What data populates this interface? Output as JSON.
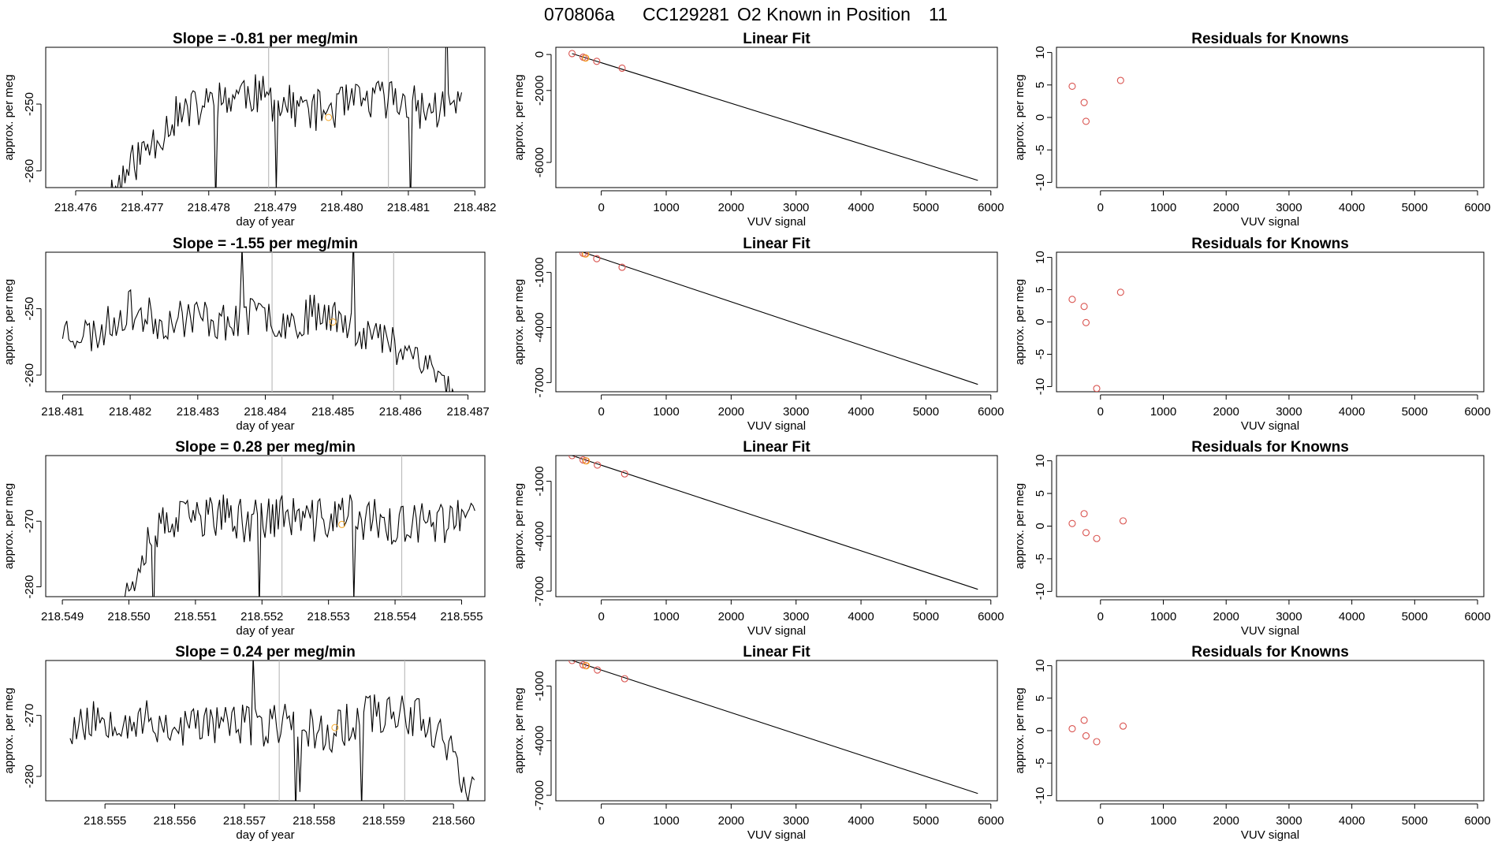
{
  "figure": {
    "title_parts": [
      "070806a",
      "CC129281",
      "O2 Known in Position",
      "11"
    ],
    "colors": {
      "line": "#000000",
      "vline": "#bdbdbd",
      "point": "#d9534f",
      "known": "#f5a623",
      "axis": "#000000"
    }
  },
  "chart_data": [
    {
      "type": "line",
      "panel": "time-series-row-1",
      "title": "Slope =  -0.81  per meg/min",
      "xlabel": "day of year",
      "ylabel": "approx. per meg",
      "xlim": [
        218.47555,
        218.48215
      ],
      "ylim": [
        -262.5,
        -241.5
      ],
      "xticks": [
        218.476,
        218.477,
        218.478,
        218.479,
        218.48,
        218.481,
        218.482
      ],
      "xtick_labels": [
        "218.476",
        "218.477",
        "218.478",
        "218.479",
        "218.480",
        "218.481",
        "218.482"
      ],
      "yticks": [
        -260,
        -250
      ],
      "ytick_labels": [
        "-260",
        "-250"
      ],
      "x_start": 218.4764,
      "x_end": 218.4818,
      "y_profile": [
        -265,
        -258,
        -252,
        -250,
        -248,
        -250,
        -251,
        -250,
        -249,
        -251,
        -250
      ],
      "vlines": [
        218.4789,
        218.4807
      ],
      "known_point": {
        "x": 218.4798,
        "y": -252
      },
      "noise_amplitude": 3.2,
      "seed": 11
    },
    {
      "type": "line",
      "panel": "time-series-row-2",
      "title": "Slope =  -1.55  per meg/min",
      "xlabel": "day of year",
      "ylabel": "approx. per meg",
      "xlim": [
        218.48075,
        218.48725
      ],
      "ylim": [
        -262.5,
        -241.5
      ],
      "xticks": [
        218.481,
        218.482,
        218.483,
        218.484,
        218.485,
        218.486,
        218.487
      ],
      "xtick_labels": [
        "218.481",
        "218.482",
        "218.483",
        "218.484",
        "218.485",
        "218.486",
        "218.487"
      ],
      "yticks": [
        -260,
        -250
      ],
      "ytick_labels": [
        "-260",
        "-250"
      ],
      "x_start": 218.481,
      "x_end": 218.4868,
      "y_profile": [
        -253,
        -254,
        -250,
        -252,
        -251,
        -252,
        -251,
        -252,
        -250,
        -253,
        -255,
        -257,
        -263
      ],
      "vlines": [
        218.4841,
        218.4859
      ],
      "known_point": {
        "x": 218.485,
        "y": -252
      },
      "noise_amplitude": 3.0,
      "seed": 23
    },
    {
      "type": "line",
      "panel": "time-series-row-3",
      "title": "Slope =  0.28  per meg/min",
      "xlabel": "day of year",
      "ylabel": "approx. per meg",
      "xlim": [
        218.54875,
        218.55535
      ],
      "ylim": [
        -281.5,
        -260.0
      ],
      "xticks": [
        218.549,
        218.55,
        218.551,
        218.552,
        218.553,
        218.554,
        218.555
      ],
      "xtick_labels": [
        "218.549",
        "218.550",
        "218.551",
        "218.552",
        "218.553",
        "218.554",
        "218.555"
      ],
      "yticks": [
        -280,
        -270
      ],
      "ytick_labels": [
        "-280",
        "-270"
      ],
      "x_start": 218.5498,
      "x_end": 218.5552,
      "y_profile": [
        -286,
        -272,
        -270,
        -269,
        -270,
        -269,
        -270,
        -269,
        -270,
        -271,
        -270,
        -270
      ],
      "vlines": [
        218.5523,
        218.5541
      ],
      "known_point": {
        "x": 218.5532,
        "y": -270.5
      },
      "noise_amplitude": 3.4,
      "seed": 37
    },
    {
      "type": "line",
      "panel": "time-series-row-4",
      "title": "Slope =  0.24  per meg/min",
      "xlabel": "day of year",
      "ylabel": "approx. per meg",
      "xlim": [
        218.55415,
        218.56045
      ],
      "ylim": [
        -284.0,
        -261.0
      ],
      "xticks": [
        218.555,
        218.556,
        218.557,
        218.558,
        218.559,
        218.56
      ],
      "xtick_labels": [
        "218.555",
        "218.556",
        "218.557",
        "218.558",
        "218.559",
        "218.560"
      ],
      "yticks": [
        -280,
        -270
      ],
      "ytick_labels": [
        "-280",
        "-270"
      ],
      "x_start": 218.5545,
      "x_end": 218.5603,
      "y_profile": [
        -272,
        -270,
        -271,
        -272,
        -271,
        -272,
        -271,
        -273,
        -270,
        -269,
        -272,
        -283
      ],
      "vlines": [
        218.5575,
        218.5593
      ],
      "known_point": {
        "x": 218.5583,
        "y": -272
      },
      "noise_amplitude": 3.6,
      "seed": 53
    },
    {
      "type": "scatter",
      "panel": "linear-fit-row-1",
      "title": "Linear Fit",
      "xlabel": "VUV signal",
      "ylabel": "approx. per meg",
      "xlim": [
        -700,
        6100
      ],
      "ylim": [
        -7400,
        400
      ],
      "xticks": [
        0,
        1000,
        2000,
        3000,
        4000,
        5000,
        6000
      ],
      "xtick_labels": [
        "0",
        "1000",
        "2000",
        "3000",
        "4000",
        "5000",
        "6000"
      ],
      "yticks": [
        -6000,
        -2000,
        0
      ],
      "ytick_labels": [
        "-6000",
        "-2000",
        "0"
      ],
      "fit_line": {
        "x": [
          -450,
          5800
        ],
        "y": [
          50,
          -7000
        ]
      },
      "points": [
        {
          "x": -450,
          "y": 50
        },
        {
          "x": -280,
          "y": -150
        },
        {
          "x": -250,
          "y": -190
        },
        {
          "x": -70,
          "y": -380
        },
        {
          "x": 320,
          "y": -760
        }
      ],
      "known_points": [
        {
          "x": -240,
          "y": -200
        }
      ]
    },
    {
      "type": "scatter",
      "panel": "linear-fit-row-2",
      "title": "Linear Fit",
      "xlabel": "VUV signal",
      "ylabel": "approx. per meg",
      "xlim": [
        -700,
        6100
      ],
      "ylim": [
        -7500,
        100
      ],
      "xticks": [
        0,
        1000,
        2000,
        3000,
        4000,
        5000,
        6000
      ],
      "xtick_labels": [
        "0",
        "1000",
        "2000",
        "3000",
        "4000",
        "5000",
        "6000"
      ],
      "yticks": [
        -7000,
        -4000,
        -1000
      ],
      "ytick_labels": [
        "-7000",
        "-4000",
        "-1000"
      ],
      "fit_line": {
        "x": [
          -450,
          5800
        ],
        "y": [
          300,
          -7100
        ]
      },
      "points": [
        {
          "x": -450,
          "y": 300
        },
        {
          "x": -280,
          "y": 40
        },
        {
          "x": -250,
          "y": 10
        },
        {
          "x": -70,
          "y": -250
        },
        {
          "x": 320,
          "y": -720
        }
      ],
      "known_points": [
        {
          "x": -240,
          "y": 0
        }
      ]
    },
    {
      "type": "scatter",
      "panel": "linear-fit-row-3",
      "title": "Linear Fit",
      "xlabel": "VUV signal",
      "ylabel": "approx. per meg",
      "xlim": [
        -700,
        6100
      ],
      "ylim": [
        -7300,
        400
      ],
      "xticks": [
        0,
        1000,
        2000,
        3000,
        4000,
        5000,
        6000
      ],
      "xtick_labels": [
        "0",
        "1000",
        "2000",
        "3000",
        "4000",
        "5000",
        "6000"
      ],
      "yticks": [
        -7000,
        -4000,
        -1000
      ],
      "ytick_labels": [
        "-7000",
        "-4000",
        "-1000"
      ],
      "fit_line": {
        "x": [
          -450,
          5800
        ],
        "y": [
          400,
          -6900
        ]
      },
      "points": [
        {
          "x": -450,
          "y": 400
        },
        {
          "x": -280,
          "y": 160
        },
        {
          "x": -240,
          "y": 120
        },
        {
          "x": -60,
          "y": -120
        },
        {
          "x": 360,
          "y": -600
        }
      ],
      "known_points": [
        {
          "x": -230,
          "y": 110
        }
      ]
    },
    {
      "type": "scatter",
      "panel": "linear-fit-row-4",
      "title": "Linear Fit",
      "xlabel": "VUV signal",
      "ylabel": "approx. per meg",
      "xlim": [
        -700,
        6100
      ],
      "ylim": [
        -7300,
        400
      ],
      "xticks": [
        0,
        1000,
        2000,
        3000,
        4000,
        5000,
        6000
      ],
      "xtick_labels": [
        "0",
        "1000",
        "2000",
        "3000",
        "4000",
        "5000",
        "6000"
      ],
      "yticks": [
        -7000,
        -4000,
        -1000
      ],
      "ytick_labels": [
        "-7000",
        "-4000",
        "-1000"
      ],
      "fit_line": {
        "x": [
          -450,
          5800
        ],
        "y": [
          400,
          -6900
        ]
      },
      "points": [
        {
          "x": -450,
          "y": 400
        },
        {
          "x": -280,
          "y": 160
        },
        {
          "x": -240,
          "y": 120
        },
        {
          "x": -60,
          "y": -120
        },
        {
          "x": 360,
          "y": -600
        }
      ],
      "known_points": [
        {
          "x": -230,
          "y": 110
        }
      ]
    },
    {
      "type": "scatter",
      "panel": "residuals-row-1",
      "title": "Residuals for Knowns",
      "xlabel": "VUV signal",
      "ylabel": "approx. per meg",
      "xlim": [
        -700,
        6100
      ],
      "ylim": [
        -10.8,
        10.8
      ],
      "xticks": [
        0,
        1000,
        2000,
        3000,
        4000,
        5000,
        6000
      ],
      "xtick_labels": [
        "0",
        "1000",
        "2000",
        "3000",
        "4000",
        "5000",
        "6000"
      ],
      "yticks": [
        -10,
        -5,
        0,
        5,
        10
      ],
      "ytick_labels": [
        "-10",
        "-5",
        "0",
        "5",
        "10"
      ],
      "points": [
        {
          "x": -450,
          "y": 4.8
        },
        {
          "x": -260,
          "y": 2.3
        },
        {
          "x": -230,
          "y": -0.6
        },
        {
          "x": 320,
          "y": 5.7
        }
      ]
    },
    {
      "type": "scatter",
      "panel": "residuals-row-2",
      "title": "Residuals for Knowns",
      "xlabel": "VUV signal",
      "ylabel": "approx. per meg",
      "xlim": [
        -700,
        6100
      ],
      "ylim": [
        -10.8,
        10.8
      ],
      "xticks": [
        0,
        1000,
        2000,
        3000,
        4000,
        5000,
        6000
      ],
      "xtick_labels": [
        "0",
        "1000",
        "2000",
        "3000",
        "4000",
        "5000",
        "6000"
      ],
      "yticks": [
        -10,
        -5,
        0,
        5,
        10
      ],
      "ytick_labels": [
        "-10",
        "-5",
        "0",
        "5",
        "10"
      ],
      "points": [
        {
          "x": -450,
          "y": 3.5
        },
        {
          "x": -260,
          "y": 2.4
        },
        {
          "x": -230,
          "y": -0.1
        },
        {
          "x": -60,
          "y": -10.3
        },
        {
          "x": 320,
          "y": 4.6
        }
      ]
    },
    {
      "type": "scatter",
      "panel": "residuals-row-3",
      "title": "Residuals for Knowns",
      "xlabel": "VUV signal",
      "ylabel": "approx. per meg",
      "xlim": [
        -700,
        6100
      ],
      "ylim": [
        -10.8,
        10.8
      ],
      "xticks": [
        0,
        1000,
        2000,
        3000,
        4000,
        5000,
        6000
      ],
      "xtick_labels": [
        "0",
        "1000",
        "2000",
        "3000",
        "4000",
        "5000",
        "6000"
      ],
      "yticks": [
        -10,
        -5,
        0,
        5,
        10
      ],
      "ytick_labels": [
        "-10",
        "-5",
        "0",
        "5",
        "10"
      ],
      "points": [
        {
          "x": -450,
          "y": 0.4
        },
        {
          "x": -260,
          "y": 1.9
        },
        {
          "x": -230,
          "y": -1.0
        },
        {
          "x": -60,
          "y": -1.9
        },
        {
          "x": 360,
          "y": 0.8
        }
      ]
    },
    {
      "type": "scatter",
      "panel": "residuals-row-4",
      "title": "Residuals for Knowns",
      "xlabel": "VUV signal",
      "ylabel": "approx. per meg",
      "xlim": [
        -700,
        6100
      ],
      "ylim": [
        -10.8,
        10.8
      ],
      "xticks": [
        0,
        1000,
        2000,
        3000,
        4000,
        5000,
        6000
      ],
      "xtick_labels": [
        "0",
        "1000",
        "2000",
        "3000",
        "4000",
        "5000",
        "6000"
      ],
      "yticks": [
        -10,
        -5,
        0,
        5,
        10
      ],
      "ytick_labels": [
        "-10",
        "-5",
        "0",
        "5",
        "10"
      ],
      "points": [
        {
          "x": -450,
          "y": 0.3
        },
        {
          "x": -260,
          "y": 1.6
        },
        {
          "x": -230,
          "y": -0.8
        },
        {
          "x": -60,
          "y": -1.7
        },
        {
          "x": 360,
          "y": 0.7
        }
      ]
    }
  ]
}
